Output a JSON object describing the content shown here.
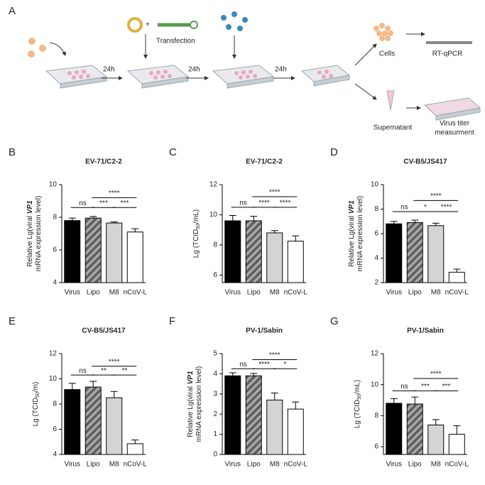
{
  "diagram": {
    "label": "A",
    "transfection": "Transfection",
    "steps": [
      "24h",
      "24h",
      "24h"
    ],
    "cells": "Cells",
    "rtqpcr": "RT-qPCR",
    "supernatant": "Supernatant",
    "titer": [
      "Virus titer",
      "measurment"
    ]
  },
  "chart_data": [
    {
      "type": "bar",
      "panel": "B",
      "title": "EV-71/C2-2",
      "categories": [
        "Virus",
        "Lipo",
        "M8",
        "nCoV-L"
      ],
      "values": [
        7.8,
        7.95,
        7.65,
        7.1
      ],
      "errors": [
        0.15,
        0.1,
        0.07,
        0.2
      ],
      "colors": [
        "#000000",
        "#8a8a8a",
        "#d4d4d4",
        "#ffffff"
      ],
      "hatch": [
        false,
        true,
        false,
        false
      ],
      "ylim": [
        4,
        10
      ],
      "yticks": [
        4,
        6,
        8,
        10
      ],
      "ylabel": [
        [
          "Relative Lg(viral ",
          "VP1"
        ],
        [
          "mRNA expression level)"
        ]
      ],
      "ylabel_style": "italic",
      "brackets": [
        {
          "label": "ns",
          "from": 0,
          "to": 1,
          "y": 8.6
        },
        {
          "label": "****",
          "from": 1,
          "to": 3,
          "y": 9.2
        },
        {
          "label": "***",
          "from": 1,
          "to": 2,
          "y": 8.6
        },
        {
          "label": "***",
          "from": 2,
          "to": 3,
          "y": 8.6
        }
      ]
    },
    {
      "type": "bar",
      "panel": "C",
      "title": "EV-71/C2-2",
      "categories": [
        "Virus",
        "Lipo",
        "M8",
        "nCoV-L"
      ],
      "values": [
        9.6,
        9.6,
        8.8,
        8.25
      ],
      "errors": [
        0.35,
        0.3,
        0.15,
        0.35
      ],
      "colors": [
        "#000000",
        "#8a8a8a",
        "#d4d4d4",
        "#ffffff"
      ],
      "hatch": [
        false,
        true,
        false,
        false
      ],
      "ylim": [
        5.5,
        12
      ],
      "yticks": [
        6,
        8,
        10,
        12
      ],
      "ylabel": [
        [
          "Lg (TCID",
          "50",
          "/mL)"
        ]
      ],
      "ylabel_style": "subscript",
      "brackets": [
        {
          "label": "ns",
          "from": 0,
          "to": 1,
          "y": 10.5
        },
        {
          "label": "****",
          "from": 1,
          "to": 3,
          "y": 11.2
        },
        {
          "label": "****",
          "from": 1,
          "to": 2,
          "y": 10.5
        },
        {
          "label": "****",
          "from": 2,
          "to": 3,
          "y": 10.5
        }
      ]
    },
    {
      "type": "bar",
      "panel": "D",
      "title": "CV-B5/JS417",
      "categories": [
        "Virus",
        "Lipo",
        "M8",
        "nCoV-L"
      ],
      "values": [
        6.8,
        6.9,
        6.65,
        2.85
      ],
      "errors": [
        0.2,
        0.2,
        0.2,
        0.25
      ],
      "colors": [
        "#000000",
        "#8a8a8a",
        "#d4d4d4",
        "#ffffff"
      ],
      "hatch": [
        false,
        true,
        false,
        false
      ],
      "ylim": [
        2,
        10
      ],
      "yticks": [
        2,
        4,
        6,
        8,
        10
      ],
      "ylabel": [
        [
          "Relative Lg(viral ",
          "VP1"
        ],
        [
          "mRNA expression  level)"
        ]
      ],
      "ylabel_style": "italic",
      "brackets": [
        {
          "label": "ns",
          "from": 0,
          "to": 1,
          "y": 7.8
        },
        {
          "label": "****",
          "from": 1,
          "to": 3,
          "y": 8.7
        },
        {
          "label": "*",
          "from": 1,
          "to": 2,
          "y": 7.8
        },
        {
          "label": "****",
          "from": 2,
          "to": 3,
          "y": 7.8
        }
      ]
    },
    {
      "type": "bar",
      "panel": "E",
      "title": "CV-B5/JS417",
      "categories": [
        "Virus",
        "Lipo",
        "M8",
        "nCoV-L"
      ],
      "values": [
        9.15,
        9.35,
        8.5,
        4.85
      ],
      "errors": [
        0.5,
        0.45,
        0.5,
        0.3
      ],
      "colors": [
        "#000000",
        "#8a8a8a",
        "#d4d4d4",
        "#ffffff"
      ],
      "hatch": [
        false,
        true,
        false,
        false
      ],
      "ylim": [
        4,
        12
      ],
      "yticks": [
        4,
        6,
        8,
        10,
        12
      ],
      "ylabel": [
        [
          "Lg (TCID",
          "50",
          "/m)"
        ]
      ],
      "ylabel_style": "subscript",
      "brackets": [
        {
          "label": "ns",
          "from": 0,
          "to": 1,
          "y": 10.3
        },
        {
          "label": "****",
          "from": 1,
          "to": 3,
          "y": 11.0
        },
        {
          "label": "**",
          "from": 1,
          "to": 2,
          "y": 10.3
        },
        {
          "label": "**",
          "from": 2,
          "to": 3,
          "y": 10.3
        }
      ]
    },
    {
      "type": "bar",
      "panel": "F",
      "title": "PV-1/Sabin",
      "categories": [
        "Virus",
        "Lipo",
        "M8",
        "nCoV-L"
      ],
      "values": [
        3.9,
        3.9,
        2.7,
        2.25
      ],
      "errors": [
        0.15,
        0.12,
        0.35,
        0.35
      ],
      "colors": [
        "#000000",
        "#8a8a8a",
        "#d4d4d4",
        "#ffffff"
      ],
      "hatch": [
        false,
        true,
        false,
        false
      ],
      "ylim": [
        0,
        5
      ],
      "yticks": [
        0,
        1,
        2,
        3,
        4,
        5
      ],
      "ylabel": [
        [
          "Relative Lg(viral ",
          "VP1"
        ],
        [
          "mRNA expression level)"
        ]
      ],
      "ylabel_style": "italic",
      "brackets": [
        {
          "label": "ns",
          "from": 0,
          "to": 1,
          "y": 4.25
        },
        {
          "label": "****",
          "from": 1,
          "to": 3,
          "y": 4.7
        },
        {
          "label": "****",
          "from": 1,
          "to": 2,
          "y": 4.25
        },
        {
          "label": "*",
          "from": 2,
          "to": 3,
          "y": 4.25
        }
      ]
    },
    {
      "type": "bar",
      "panel": "G",
      "title": "PV-1/Sabin",
      "categories": [
        "Virus",
        "Lipo",
        "M8",
        "nCoV-L"
      ],
      "values": [
        8.8,
        8.75,
        7.4,
        6.8
      ],
      "errors": [
        0.3,
        0.45,
        0.35,
        0.55
      ],
      "colors": [
        "#000000",
        "#8a8a8a",
        "#d4d4d4",
        "#ffffff"
      ],
      "hatch": [
        false,
        true,
        false,
        false
      ],
      "ylim": [
        5.5,
        12
      ],
      "yticks": [
        6,
        8,
        10,
        12
      ],
      "ylabel": [
        [
          "Lg (TCID",
          "50",
          "/mL)"
        ]
      ],
      "ylabel_style": "subscript",
      "brackets": [
        {
          "label": "ns",
          "from": 0,
          "to": 1,
          "y": 9.6
        },
        {
          "label": "****",
          "from": 1,
          "to": 3,
          "y": 10.4
        },
        {
          "label": "***",
          "from": 1,
          "to": 2,
          "y": 9.6
        },
        {
          "label": "***",
          "from": 2,
          "to": 3,
          "y": 9.6
        }
      ]
    }
  ]
}
